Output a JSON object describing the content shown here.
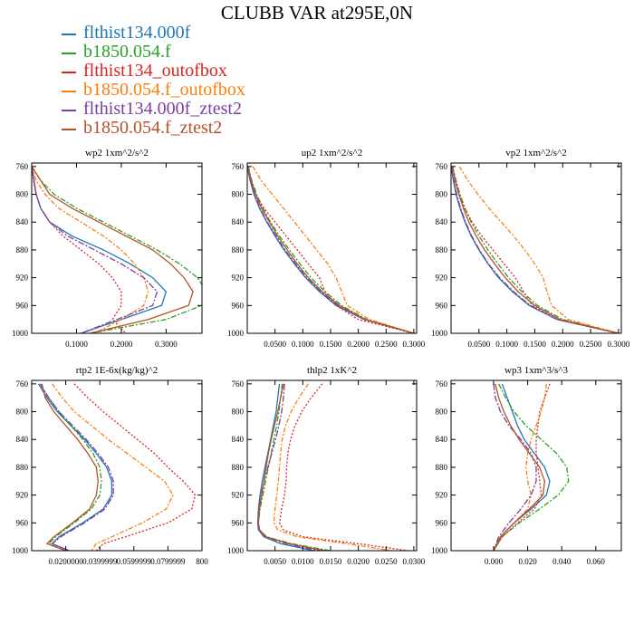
{
  "title": "CLUBB VAR at295E,0N",
  "legend": [
    {
      "name": "flthist134.000f",
      "color": "#1f77b4"
    },
    {
      "name": "b1850.054.f",
      "color": "#2ca02c"
    },
    {
      "name": "flthist134_outofbox",
      "color": "#d62728"
    },
    {
      "name": "b1850.054.f_outofbox",
      "color": "#ff7f0e"
    },
    {
      "name": "flthist134.000f_ztest2",
      "color": "#7b3fa0"
    },
    {
      "name": "b1850.054.f_ztest2",
      "color": "#b5522a"
    }
  ],
  "chart_data": [
    {
      "type": "line",
      "title": "wp2  1xm^2/s^2",
      "xlim": [
        0,
        0.38
      ],
      "ylim": [
        1000,
        755
      ],
      "xticks": [
        "0.1000",
        "0.2000",
        "0.3000"
      ],
      "yticks": [
        "760",
        "800",
        "840",
        "880",
        "920",
        "960",
        "1000"
      ],
      "y": [
        760,
        780,
        800,
        820,
        840,
        860,
        880,
        900,
        920,
        940,
        960,
        980,
        1000
      ],
      "series": [
        {
          "name": "flthist134.000f",
          "x": [
            0.0,
            0.005,
            0.01,
            0.02,
            0.04,
            0.09,
            0.16,
            0.22,
            0.27,
            0.3,
            0.29,
            0.2,
            0.11
          ]
        },
        {
          "name": "b1850.054.f",
          "x": [
            0.0,
            0.02,
            0.05,
            0.1,
            0.16,
            0.22,
            0.28,
            0.33,
            0.37,
            0.39,
            0.38,
            0.3,
            0.13
          ]
        },
        {
          "name": "flthist134_outofbox",
          "x": [
            0.0,
            0.004,
            0.01,
            0.02,
            0.04,
            0.07,
            0.11,
            0.15,
            0.18,
            0.2,
            0.2,
            0.18,
            0.21
          ]
        },
        {
          "name": "b1850.054.f_outofbox",
          "x": [
            0.0,
            0.01,
            0.03,
            0.06,
            0.11,
            0.16,
            0.2,
            0.23,
            0.25,
            0.26,
            0.25,
            0.2,
            0.14
          ]
        },
        {
          "name": "flthist134.000f_ztest2",
          "x": [
            0.0,
            0.005,
            0.01,
            0.02,
            0.04,
            0.08,
            0.14,
            0.2,
            0.25,
            0.28,
            0.27,
            0.19,
            0.11
          ]
        },
        {
          "name": "b1850.054.f_ztest2",
          "x": [
            0.0,
            0.02,
            0.04,
            0.09,
            0.15,
            0.21,
            0.27,
            0.31,
            0.34,
            0.36,
            0.35,
            0.26,
            0.13
          ]
        }
      ]
    },
    {
      "type": "line",
      "title": "up2  1xm^2/s^2",
      "xlim": [
        0,
        0.305
      ],
      "ylim": [
        1000,
        755
      ],
      "xticks": [
        "0.0500",
        "0.1000",
        "0.1500",
        "0.2000",
        "0.2500",
        "0.3000"
      ],
      "yticks": [
        "760",
        "800",
        "840",
        "880",
        "920",
        "960",
        "1000"
      ],
      "y": [
        760,
        780,
        800,
        820,
        840,
        860,
        880,
        900,
        920,
        940,
        960,
        980,
        1000
      ],
      "series": [
        {
          "name": "flthist134.000f",
          "x": [
            0.0,
            0.005,
            0.012,
            0.022,
            0.035,
            0.05,
            0.066,
            0.085,
            0.105,
            0.13,
            0.16,
            0.21,
            0.3
          ]
        },
        {
          "name": "b1850.054.f",
          "x": [
            0.002,
            0.008,
            0.017,
            0.028,
            0.042,
            0.058,
            0.076,
            0.095,
            0.115,
            0.14,
            0.17,
            0.215,
            0.3
          ]
        },
        {
          "name": "flthist134_outofbox",
          "x": [
            0.0,
            0.006,
            0.015,
            0.03,
            0.05,
            0.07,
            0.09,
            0.11,
            0.13,
            0.14,
            0.16,
            0.2,
            0.3
          ]
        },
        {
          "name": "b1850.054.f_outofbox",
          "x": [
            0.01,
            0.025,
            0.045,
            0.065,
            0.085,
            0.105,
            0.125,
            0.145,
            0.16,
            0.17,
            0.18,
            0.22,
            0.3
          ]
        },
        {
          "name": "flthist134.000f_ztest2",
          "x": [
            0.0,
            0.006,
            0.013,
            0.023,
            0.036,
            0.052,
            0.068,
            0.087,
            0.107,
            0.132,
            0.163,
            0.212,
            0.3
          ]
        },
        {
          "name": "b1850.054.f_ztest2",
          "x": [
            0.001,
            0.007,
            0.015,
            0.026,
            0.04,
            0.055,
            0.072,
            0.09,
            0.11,
            0.135,
            0.166,
            0.212,
            0.3
          ]
        }
      ]
    },
    {
      "type": "line",
      "title": "vp2  1xm^2/s^2",
      "xlim": [
        0,
        0.305
      ],
      "ylim": [
        1000,
        755
      ],
      "xticks": [
        "0.0500",
        "0.1000",
        "0.1500",
        "0.2000",
        "0.2500",
        "0.3000"
      ],
      "yticks": [
        "760",
        "800",
        "840",
        "880",
        "920",
        "960",
        "1000"
      ],
      "y": [
        760,
        780,
        800,
        820,
        840,
        860,
        880,
        900,
        920,
        940,
        960,
        980,
        1000
      ],
      "series": [
        {
          "name": "flthist134.000f",
          "x": [
            0.0,
            0.004,
            0.009,
            0.016,
            0.025,
            0.036,
            0.05,
            0.066,
            0.085,
            0.11,
            0.14,
            0.19,
            0.3
          ]
        },
        {
          "name": "b1850.054.f",
          "x": [
            0.003,
            0.009,
            0.016,
            0.025,
            0.036,
            0.05,
            0.066,
            0.084,
            0.103,
            0.127,
            0.155,
            0.2,
            0.3
          ]
        },
        {
          "name": "flthist134_outofbox",
          "x": [
            0.0,
            0.006,
            0.014,
            0.024,
            0.038,
            0.055,
            0.075,
            0.095,
            0.115,
            0.13,
            0.145,
            0.19,
            0.3
          ]
        },
        {
          "name": "b1850.054.f_outofbox",
          "x": [
            0.015,
            0.03,
            0.048,
            0.068,
            0.09,
            0.112,
            0.132,
            0.15,
            0.165,
            0.172,
            0.18,
            0.21,
            0.3
          ]
        },
        {
          "name": "flthist134.000f_ztest2",
          "x": [
            0.0,
            0.005,
            0.01,
            0.017,
            0.026,
            0.037,
            0.051,
            0.067,
            0.087,
            0.112,
            0.142,
            0.19,
            0.3
          ]
        },
        {
          "name": "b1850.054.f_ztest2",
          "x": [
            0.002,
            0.008,
            0.014,
            0.022,
            0.032,
            0.045,
            0.06,
            0.078,
            0.097,
            0.12,
            0.15,
            0.195,
            0.3
          ]
        }
      ]
    },
    {
      "type": "line",
      "title": "rtp2  1E-6x(kg/kg)^2",
      "xlim": [
        0,
        1.0
      ],
      "ylim": [
        1000,
        755
      ],
      "xticks": [
        "0.0200000",
        "0.0399999",
        "0.0599999",
        "0.0799999",
        "800"
      ],
      "yticks": [
        "760",
        "800",
        "840",
        "880",
        "920",
        "960",
        "1000"
      ],
      "y": [
        760,
        780,
        800,
        820,
        840,
        860,
        880,
        900,
        920,
        940,
        960,
        980,
        990,
        1000
      ],
      "series": [
        {
          "name": "flthist134.000f",
          "x": [
            0.04,
            0.09,
            0.15,
            0.23,
            0.31,
            0.38,
            0.44,
            0.47,
            0.47,
            0.42,
            0.3,
            0.16,
            0.12,
            0.22
          ]
        },
        {
          "name": "b1850.054.f",
          "x": [
            0.05,
            0.1,
            0.16,
            0.23,
            0.3,
            0.36,
            0.4,
            0.41,
            0.4,
            0.35,
            0.25,
            0.14,
            0.1,
            0.2
          ]
        },
        {
          "name": "flthist134_outofbox",
          "x": [
            0.25,
            0.33,
            0.42,
            0.52,
            0.62,
            0.72,
            0.8,
            0.89,
            0.96,
            0.94,
            0.8,
            0.55,
            0.42,
            0.38
          ]
        },
        {
          "name": "b1850.054.f_outofbox",
          "x": [
            0.12,
            0.18,
            0.25,
            0.35,
            0.45,
            0.56,
            0.67,
            0.78,
            0.83,
            0.79,
            0.65,
            0.47,
            0.38,
            0.35
          ]
        },
        {
          "name": "flthist134.000f_ztest2",
          "x": [
            0.05,
            0.1,
            0.16,
            0.24,
            0.32,
            0.39,
            0.45,
            0.48,
            0.48,
            0.43,
            0.31,
            0.17,
            0.12,
            0.22
          ]
        },
        {
          "name": "b1850.054.f_ztest2",
          "x": [
            0.06,
            0.08,
            0.13,
            0.2,
            0.27,
            0.33,
            0.38,
            0.39,
            0.38,
            0.34,
            0.24,
            0.13,
            0.09,
            0.2
          ]
        }
      ]
    },
    {
      "type": "line",
      "title": "thlp2  1xK^2",
      "xlim": [
        0,
        0.0305
      ],
      "ylim": [
        1000,
        755
      ],
      "xticks": [
        "0.0050",
        "0.0100",
        "0.0150",
        "0.0200",
        "0.0250",
        "0.0300"
      ],
      "yticks": [
        "760",
        "800",
        "840",
        "880",
        "920",
        "960",
        "1000"
      ],
      "y": [
        760,
        780,
        800,
        820,
        840,
        860,
        880,
        900,
        920,
        940,
        960,
        970,
        980,
        990,
        1000
      ],
      "series": [
        {
          "name": "flthist134.000f",
          "x": [
            0.0058,
            0.0055,
            0.0052,
            0.0047,
            0.0042,
            0.0037,
            0.0032,
            0.0027,
            0.0023,
            0.002,
            0.0019,
            0.002,
            0.003,
            0.006,
            0.012
          ]
        },
        {
          "name": "b1850.054.f",
          "x": [
            0.0063,
            0.006,
            0.0057,
            0.0053,
            0.0048,
            0.0043,
            0.0038,
            0.0033,
            0.0028,
            0.0023,
            0.002,
            0.0022,
            0.0035,
            0.008,
            0.015
          ]
        },
        {
          "name": "flthist134_outofbox",
          "x": [
            0.0135,
            0.0115,
            0.0098,
            0.0086,
            0.0078,
            0.0073,
            0.0071,
            0.007,
            0.0067,
            0.0062,
            0.0058,
            0.0065,
            0.01,
            0.02,
            0.029
          ]
        },
        {
          "name": "b1850.054.f_outofbox",
          "x": [
            0.011,
            0.0093,
            0.0079,
            0.0069,
            0.0063,
            0.006,
            0.0058,
            0.0056,
            0.0053,
            0.005,
            0.0048,
            0.0055,
            0.009,
            0.018,
            0.026
          ]
        },
        {
          "name": "flthist134.000f_ztest2",
          "x": [
            0.0067,
            0.0065,
            0.0062,
            0.0057,
            0.0051,
            0.0044,
            0.0037,
            0.003,
            0.0025,
            0.0021,
            0.0019,
            0.0021,
            0.0032,
            0.007,
            0.013
          ]
        },
        {
          "name": "b1850.054.f_ztest2",
          "x": [
            0.0065,
            0.006,
            0.0055,
            0.0049,
            0.0043,
            0.0038,
            0.0034,
            0.003,
            0.0026,
            0.0022,
            0.002,
            0.0022,
            0.0034,
            0.0075,
            0.014
          ]
        }
      ]
    },
    {
      "type": "line",
      "title": "wp3  1xm^3/s^3",
      "xlim": [
        -0.025,
        0.075
      ],
      "ylim": [
        1000,
        755
      ],
      "xticks": [
        "0.000",
        "0.020",
        "0.040",
        "0.060"
      ],
      "yticks": [
        "760",
        "800",
        "840",
        "880",
        "920",
        "960",
        "1000"
      ],
      "y": [
        760,
        780,
        800,
        820,
        840,
        860,
        880,
        900,
        920,
        940,
        960,
        980,
        1000
      ],
      "series": [
        {
          "name": "flthist134.000f",
          "x": [
            0.005,
            0.008,
            0.011,
            0.014,
            0.018,
            0.024,
            0.03,
            0.033,
            0.031,
            0.022,
            0.012,
            0.004,
            0.0
          ]
        },
        {
          "name": "b1850.054.f",
          "x": [
            0.003,
            0.007,
            0.012,
            0.019,
            0.028,
            0.037,
            0.043,
            0.044,
            0.038,
            0.027,
            0.015,
            0.005,
            0.0
          ]
        },
        {
          "name": "flthist134_outofbox",
          "x": [
            0.033,
            0.03,
            0.027,
            0.026,
            0.025,
            0.025,
            0.026,
            0.027,
            0.028,
            0.024,
            0.014,
            0.005,
            0.0
          ]
        },
        {
          "name": "b1850.054.f_outofbox",
          "x": [
            0.031,
            0.03,
            0.028,
            0.025,
            0.022,
            0.02,
            0.019,
            0.02,
            0.022,
            0.02,
            0.012,
            0.004,
            0.0
          ]
        },
        {
          "name": "flthist134.000f_ztest2",
          "x": [
            0.0,
            0.001,
            0.004,
            0.009,
            0.016,
            0.022,
            0.025,
            0.025,
            0.022,
            0.016,
            0.009,
            0.003,
            0.0
          ]
        },
        {
          "name": "b1850.054.f_ztest2",
          "x": [
            0.001,
            0.003,
            0.006,
            0.01,
            0.015,
            0.021,
            0.027,
            0.03,
            0.029,
            0.021,
            0.012,
            0.004,
            0.0
          ]
        }
      ]
    }
  ]
}
